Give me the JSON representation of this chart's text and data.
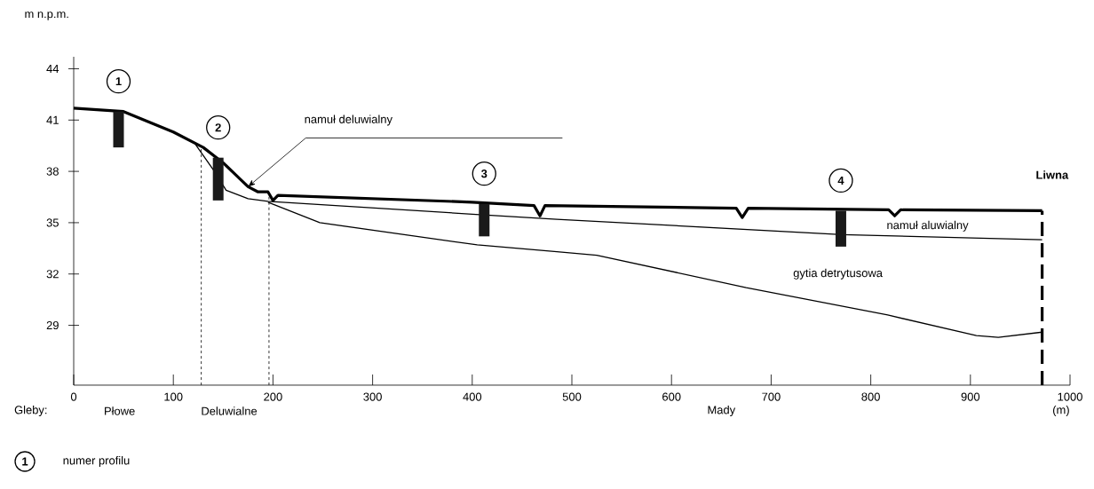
{
  "chart_data": {
    "type": "line",
    "ylabel": "m n.p.m.",
    "xlabel": "(m)",
    "xlim": [
      0,
      1000
    ],
    "ylim": [
      25.5,
      44.7
    ],
    "xticks": [
      0,
      100,
      200,
      300,
      400,
      500,
      600,
      700,
      800,
      900,
      1000
    ],
    "yticks": [
      29,
      32,
      35,
      38,
      41,
      44
    ],
    "grid": false,
    "series": [
      {
        "color": "#000000",
        "x": [
          0,
          50,
          100,
          130,
          150,
          175,
          185,
          195,
          200,
          205,
          400,
          462,
          468,
          473,
          665,
          671,
          677,
          818,
          824,
          830,
          972
        ],
        "values": [
          41.7,
          41.5,
          40.3,
          39.4,
          38.5,
          37.1,
          36.8,
          36.8,
          36.3,
          36.6,
          36.2,
          36.0,
          35.4,
          36.0,
          35.85,
          35.3,
          35.85,
          35.75,
          35.4,
          35.75,
          35.7
        ]
      },
      {
        "color": "#000000",
        "x": [
          122,
          140,
          153,
          175,
          195,
          400,
          485,
          771,
          972
        ],
        "values": [
          39.6,
          38.1,
          36.9,
          36.4,
          36.25,
          35.5,
          35.2,
          34.3,
          34.0
        ]
      },
      {
        "color": "#000000",
        "x": [
          195,
          247,
          405,
          485,
          525,
          675,
          817,
          906,
          928,
          972
        ],
        "values": [
          36.2,
          35.0,
          33.7,
          33.3,
          33.1,
          31.2,
          29.6,
          28.4,
          28.3,
          28.6
        ]
      },
      {
        "type": "bar",
        "color": "#1a1a1a",
        "x": [
          45,
          145,
          412,
          770
        ],
        "base": [
          39.4,
          36.3,
          34.2,
          33.6
        ],
        "values": [
          2.1,
          2.5,
          1.9,
          2.1
        ]
      }
    ],
    "ref_lines": [
      {
        "axis": "x",
        "value": 128,
        "line_style": "dashed"
      },
      {
        "axis": "x",
        "value": 196,
        "line_style": "dashed"
      },
      {
        "axis": "x",
        "value": 972,
        "line_style": "dashed"
      }
    ],
    "annotations": [
      {
        "text": "namuł deluwialny",
        "x": 175,
        "y": 37.1
      },
      "1",
      "2",
      "3",
      "4",
      "namuł aluwialny",
      "gytia detrytusowa",
      "Liwna",
      "Gleby:",
      "Płowe",
      "Deluwialne",
      "Mady",
      "1",
      "numer profilu"
    ]
  }
}
